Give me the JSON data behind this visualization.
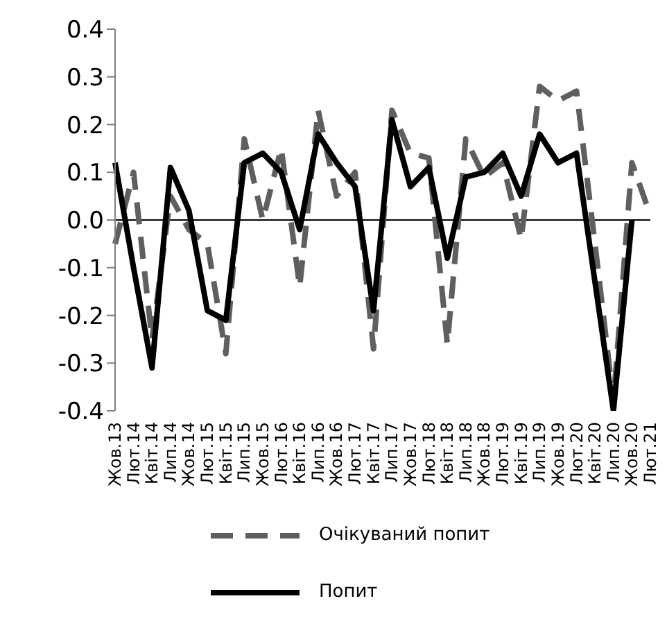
{
  "chart_data": {
    "type": "line",
    "categories": [
      "Жов.13",
      "Лют.14",
      "Квіт.14",
      "Лип.14",
      "Жов.14",
      "Лют.15",
      "Квіт.15",
      "Лип.15",
      "Жов.15",
      "Лют.16",
      "Квіт.16",
      "Лип.16",
      "Жов.16",
      "Лют.17",
      "Квіт.17",
      "Лип.17",
      "Жов.17",
      "Лют.18",
      "Квіт.18",
      "Лип.18",
      "Жов.18",
      "Лют.19",
      "Квіт.19",
      "Лип.19",
      "Жов.19",
      "Лют.20",
      "Квіт.20",
      "Лип.20",
      "Жов.20",
      "Лют.21"
    ],
    "series": [
      {
        "name": "Очікуваний попит",
        "color": "#5f5f5f",
        "line_style": "dashed",
        "values": [
          -0.05,
          0.1,
          -0.25,
          0.05,
          -0.02,
          -0.05,
          -0.28,
          0.17,
          0.0,
          0.15,
          -0.14,
          0.23,
          0.05,
          0.1,
          -0.27,
          0.23,
          0.14,
          0.13,
          -0.26,
          0.17,
          0.09,
          0.12,
          -0.04,
          0.28,
          0.25,
          0.27,
          -0.05,
          -0.38,
          0.12,
          0.01
        ]
      },
      {
        "name": "Попит",
        "color": "#000000",
        "line_style": "solid",
        "values": [
          0.12,
          -0.1,
          -0.31,
          0.11,
          0.02,
          -0.19,
          -0.21,
          0.12,
          0.14,
          0.1,
          -0.02,
          0.18,
          0.12,
          0.07,
          -0.19,
          0.21,
          0.07,
          0.11,
          -0.08,
          0.09,
          0.1,
          0.14,
          0.05,
          0.18,
          0.12,
          0.14,
          -0.13,
          -0.4,
          0.0,
          null
        ]
      }
    ],
    "ylim": [
      -0.4,
      0.4
    ],
    "yticks": [
      -0.4,
      -0.3,
      -0.2,
      -0.1,
      {
        "value": 0,
        "label": "0.0"
      },
      0.1,
      0.2,
      0.3,
      0.4
    ],
    "marker": "none",
    "ref_lines": [
      {
        "axis": "y",
        "value": 0,
        "color": "#000000"
      }
    ],
    "grid": false,
    "legend": "bottom"
  }
}
